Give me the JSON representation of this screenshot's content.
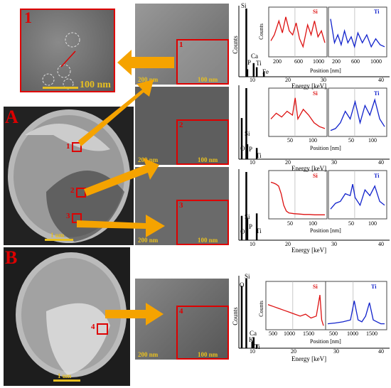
{
  "figure": {
    "panel_letters": [
      "A",
      "B"
    ],
    "labels": {
      "zoom": "1",
      "inset1": "1",
      "inset2": "2",
      "inset3": "3",
      "inset4": "4",
      "region1": "1",
      "region2": "2",
      "region3": "3",
      "region4": "4"
    },
    "scales": {
      "zoom": "100 nm",
      "em_a": "1 um",
      "em_b": "1 um",
      "stem_200": "200 nm",
      "stem_100": "100 nm"
    },
    "eds_axis": {
      "xlabel": "Energy [keV]",
      "ylabel": "Counts",
      "ticks": [
        "10",
        "20",
        "30",
        "40"
      ]
    },
    "elements": {
      "row1": [
        "Si",
        "Ca",
        "P",
        "Ti",
        "Fe"
      ],
      "row2": [
        "Si",
        "O",
        "P",
        "Ti"
      ],
      "row3": [
        "Si",
        "O",
        "P",
        "Ti"
      ],
      "row4": [
        "Si",
        "O",
        "Ca",
        "K",
        "Ti"
      ]
    },
    "line_axis": {
      "xlabel": "Position [nm]",
      "ylabel": "Counts"
    },
    "line_ticks": {
      "row1_si": [
        "200",
        "600",
        "1000"
      ],
      "row1_ti": [
        "200",
        "600",
        "1000"
      ],
      "row2_si": [
        "50",
        "100"
      ],
      "row2_ti": [
        "50",
        "100"
      ],
      "row3_si": [
        "50",
        "100"
      ],
      "row3_ti": [
        "50",
        "100"
      ],
      "row4_si": [
        "500",
        "1000",
        "1500"
      ],
      "row4_ti": [
        "500",
        "1000",
        "1500"
      ]
    },
    "legend": {
      "si": "Si",
      "ti": "Ti"
    },
    "colors": {
      "si": "#dd1111",
      "ti": "#1122cc",
      "arrow": "#f5a300",
      "accent": "#dd0000",
      "scale": "#e8c020"
    }
  },
  "chart_data": [
    {
      "type": "bar",
      "title": "",
      "xlabel": "Energy [keV]",
      "ylabel": "Counts",
      "xlim": [
        0,
        40
      ],
      "categories": [
        "Si",
        "Ca",
        "P",
        "Ti",
        "Fe"
      ],
      "x": [
        1.74,
        3.69,
        2.01,
        4.51,
        6.4
      ],
      "values": [
        100,
        20,
        11,
        14,
        7
      ]
    },
    {
      "type": "line",
      "xlabel": "Position [nm]",
      "ylabel": "Counts",
      "legend": "top-right",
      "series": [
        {
          "name": "Si",
          "x": [
            130,
            160,
            200,
            230,
            260,
            290,
            320,
            350,
            380,
            410,
            450,
            480,
            510,
            540,
            570,
            600
          ],
          "values": [
            0.35,
            0.5,
            0.85,
            0.55,
            0.95,
            0.6,
            0.5,
            0.8,
            0.4,
            0.2,
            0.75,
            0.5,
            0.85,
            0.45,
            0.6,
            0.3
          ]
        },
        {
          "name": "Ti",
          "x": [
            130,
            200,
            260,
            320,
            380,
            440,
            500,
            560,
            620,
            700,
            780,
            860,
            940,
            1020,
            1100
          ],
          "values": [
            0.9,
            0.3,
            0.5,
            0.25,
            0.6,
            0.3,
            0.45,
            0.2,
            0.55,
            0.3,
            0.5,
            0.2,
            0.4,
            0.25,
            0.2
          ]
        }
      ]
    },
    {
      "type": "bar",
      "xlabel": "Energy [keV]",
      "ylabel": "Counts",
      "xlim": [
        0,
        40
      ],
      "categories": [
        "O",
        "Si",
        "P",
        "Ti"
      ],
      "x": [
        0.52,
        1.74,
        2.01,
        4.51
      ],
      "values": [
        22,
        38,
        8,
        6
      ]
    },
    {
      "type": "line",
      "xlabel": "Position [nm]",
      "ylabel": "Counts",
      "legend": "top-right",
      "series": [
        {
          "name": "Si",
          "x": [
            10,
            20,
            30,
            40,
            50,
            55,
            60,
            70,
            80,
            90,
            100,
            110
          ],
          "values": [
            0.4,
            0.55,
            0.45,
            0.6,
            0.5,
            0.95,
            0.4,
            0.65,
            0.5,
            0.3,
            0.2,
            0.15
          ]
        },
        {
          "name": "Ti",
          "x": [
            10,
            20,
            30,
            40,
            50,
            60,
            70,
            80,
            90,
            100,
            110,
            120
          ],
          "values": [
            0.1,
            0.15,
            0.3,
            0.6,
            0.4,
            0.85,
            0.3,
            0.75,
            0.5,
            0.9,
            0.4,
            0.2
          ]
        }
      ]
    },
    {
      "type": "bar",
      "xlabel": "Energy [keV]",
      "ylabel": "Counts",
      "xlim": [
        0,
        40
      ],
      "categories": [
        "O",
        "Si",
        "P",
        "Ti"
      ],
      "x": [
        0.52,
        1.74,
        2.01,
        4.51
      ],
      "values": [
        10,
        28,
        9,
        11
      ]
    },
    {
      "type": "line",
      "xlabel": "Position [nm]",
      "ylabel": "Counts",
      "legend": "top-right",
      "series": [
        {
          "name": "Si",
          "x": [
            5,
            10,
            15,
            20,
            25,
            30,
            35,
            40,
            50,
            60,
            70,
            80,
            90,
            100,
            110
          ],
          "values": [
            0.9,
            0.88,
            0.85,
            0.8,
            0.6,
            0.3,
            0.15,
            0.1,
            0.08,
            0.07,
            0.06,
            0.06,
            0.05,
            0.05,
            0.05
          ]
        },
        {
          "name": "Ti",
          "x": [
            5,
            15,
            25,
            35,
            45,
            50,
            55,
            65,
            75,
            85,
            95,
            105,
            115
          ],
          "values": [
            0.2,
            0.35,
            0.4,
            0.6,
            0.55,
            0.85,
            0.5,
            0.3,
            0.7,
            0.55,
            0.8,
            0.4,
            0.3
          ]
        }
      ]
    },
    {
      "type": "bar",
      "xlabel": "Energy [keV]",
      "ylabel": "Counts",
      "xlim": [
        0,
        40
      ],
      "categories": [
        "O",
        "Si",
        "Ca",
        "K",
        "Ti"
      ],
      "x": [
        0.52,
        1.74,
        3.69,
        3.31,
        4.51
      ],
      "values": [
        85,
        95,
        15,
        9,
        5
      ]
    },
    {
      "type": "line",
      "xlabel": "Position [nm]",
      "ylabel": "Counts",
      "legend": "top-right",
      "series": [
        {
          "name": "Si",
          "x": [
            100,
            250,
            400,
            550,
            700,
            850,
            1000,
            1150,
            1300,
            1450,
            1550,
            1600,
            1650
          ],
          "values": [
            0.6,
            0.55,
            0.5,
            0.45,
            0.4,
            0.35,
            0.3,
            0.35,
            0.25,
            0.3,
            0.85,
            0.2,
            0.05
          ]
        },
        {
          "name": "Ti",
          "x": [
            100,
            300,
            500,
            700,
            800,
            900,
            1000,
            1100,
            1200,
            1300,
            1400,
            1500,
            1600
          ],
          "values": [
            0.1,
            0.12,
            0.15,
            0.2,
            0.7,
            0.2,
            0.15,
            0.3,
            0.65,
            0.2,
            0.15,
            0.1,
            0.1
          ]
        }
      ]
    }
  ]
}
